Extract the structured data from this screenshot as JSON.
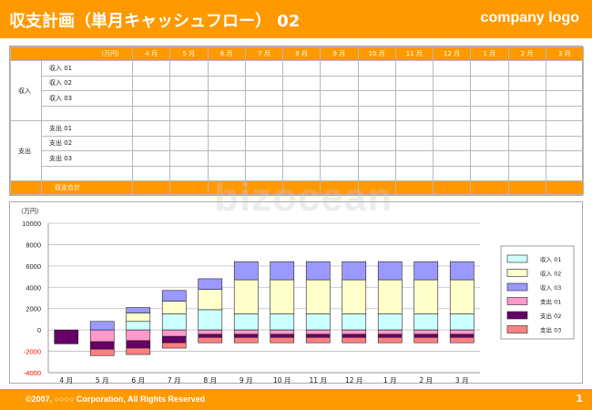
{
  "header": {
    "title": "収支計画（単月キャッシュフロー） 02",
    "logo": "company logo"
  },
  "table": {
    "unit": "（万円）",
    "months": [
      "4 月",
      "5 月",
      "6 月",
      "7 月",
      "8 月",
      "9 月",
      "10 月",
      "11 月",
      "12 月",
      "1 月",
      "2 月",
      "3 月"
    ],
    "income_label": "収入",
    "income_items": [
      "収入 01",
      "収入 02",
      "収入 03",
      ""
    ],
    "expense_label": "支出",
    "expense_items": [
      "支出 01",
      "支出 02",
      "支出 03",
      ""
    ],
    "total_label": "収支合計"
  },
  "chart_data": {
    "type": "bar",
    "stacked": true,
    "unit_label": "（万円）",
    "categories": [
      "4 月",
      "5 月",
      "6 月",
      "7 月",
      "8 月",
      "9 月",
      "10 月",
      "11 月",
      "12 月",
      "1 月",
      "2 月",
      "3 月"
    ],
    "ylim": [
      -4000,
      10000
    ],
    "yticks": [
      10000,
      8000,
      6000,
      4000,
      2000,
      0,
      -2000,
      -4000
    ],
    "negative_tick_color": "#ff0000",
    "grid": true,
    "legend_position": "right",
    "series": [
      {
        "name": "収入 01",
        "color": "#ccffff",
        "values": [
          0,
          0,
          800,
          1500,
          1900,
          1500,
          1500,
          1500,
          1500,
          1500,
          1500,
          1500
        ]
      },
      {
        "name": "収入 02",
        "color": "#ffffcc",
        "values": [
          0,
          0,
          800,
          1200,
          1900,
          3200,
          3200,
          3200,
          3200,
          3200,
          3200,
          3200
        ]
      },
      {
        "name": "収入 03",
        "color": "#9999ff",
        "values": [
          0,
          800,
          500,
          1000,
          1000,
          1700,
          1700,
          1700,
          1700,
          1700,
          1700,
          1700
        ]
      },
      {
        "name": "支出 01",
        "color": "#ff99cc",
        "values": [
          0,
          -1100,
          -1000,
          -600,
          -400,
          -400,
          -400,
          -400,
          -400,
          -400,
          -400,
          -400
        ]
      },
      {
        "name": "支出 02",
        "color": "#660066",
        "values": [
          -1300,
          -700,
          -700,
          -600,
          -300,
          -300,
          -300,
          -300,
          -300,
          -300,
          -300,
          -300
        ]
      },
      {
        "name": "支出 03",
        "color": "#ff8080",
        "values": [
          0,
          -600,
          -600,
          -500,
          -500,
          -500,
          -500,
          -500,
          -500,
          -500,
          -500,
          -500
        ]
      }
    ]
  },
  "footer": {
    "copyright": "©2007, ○○○○ Corporation, All Rights Reserved",
    "page": "1"
  },
  "watermark": "bizocean"
}
